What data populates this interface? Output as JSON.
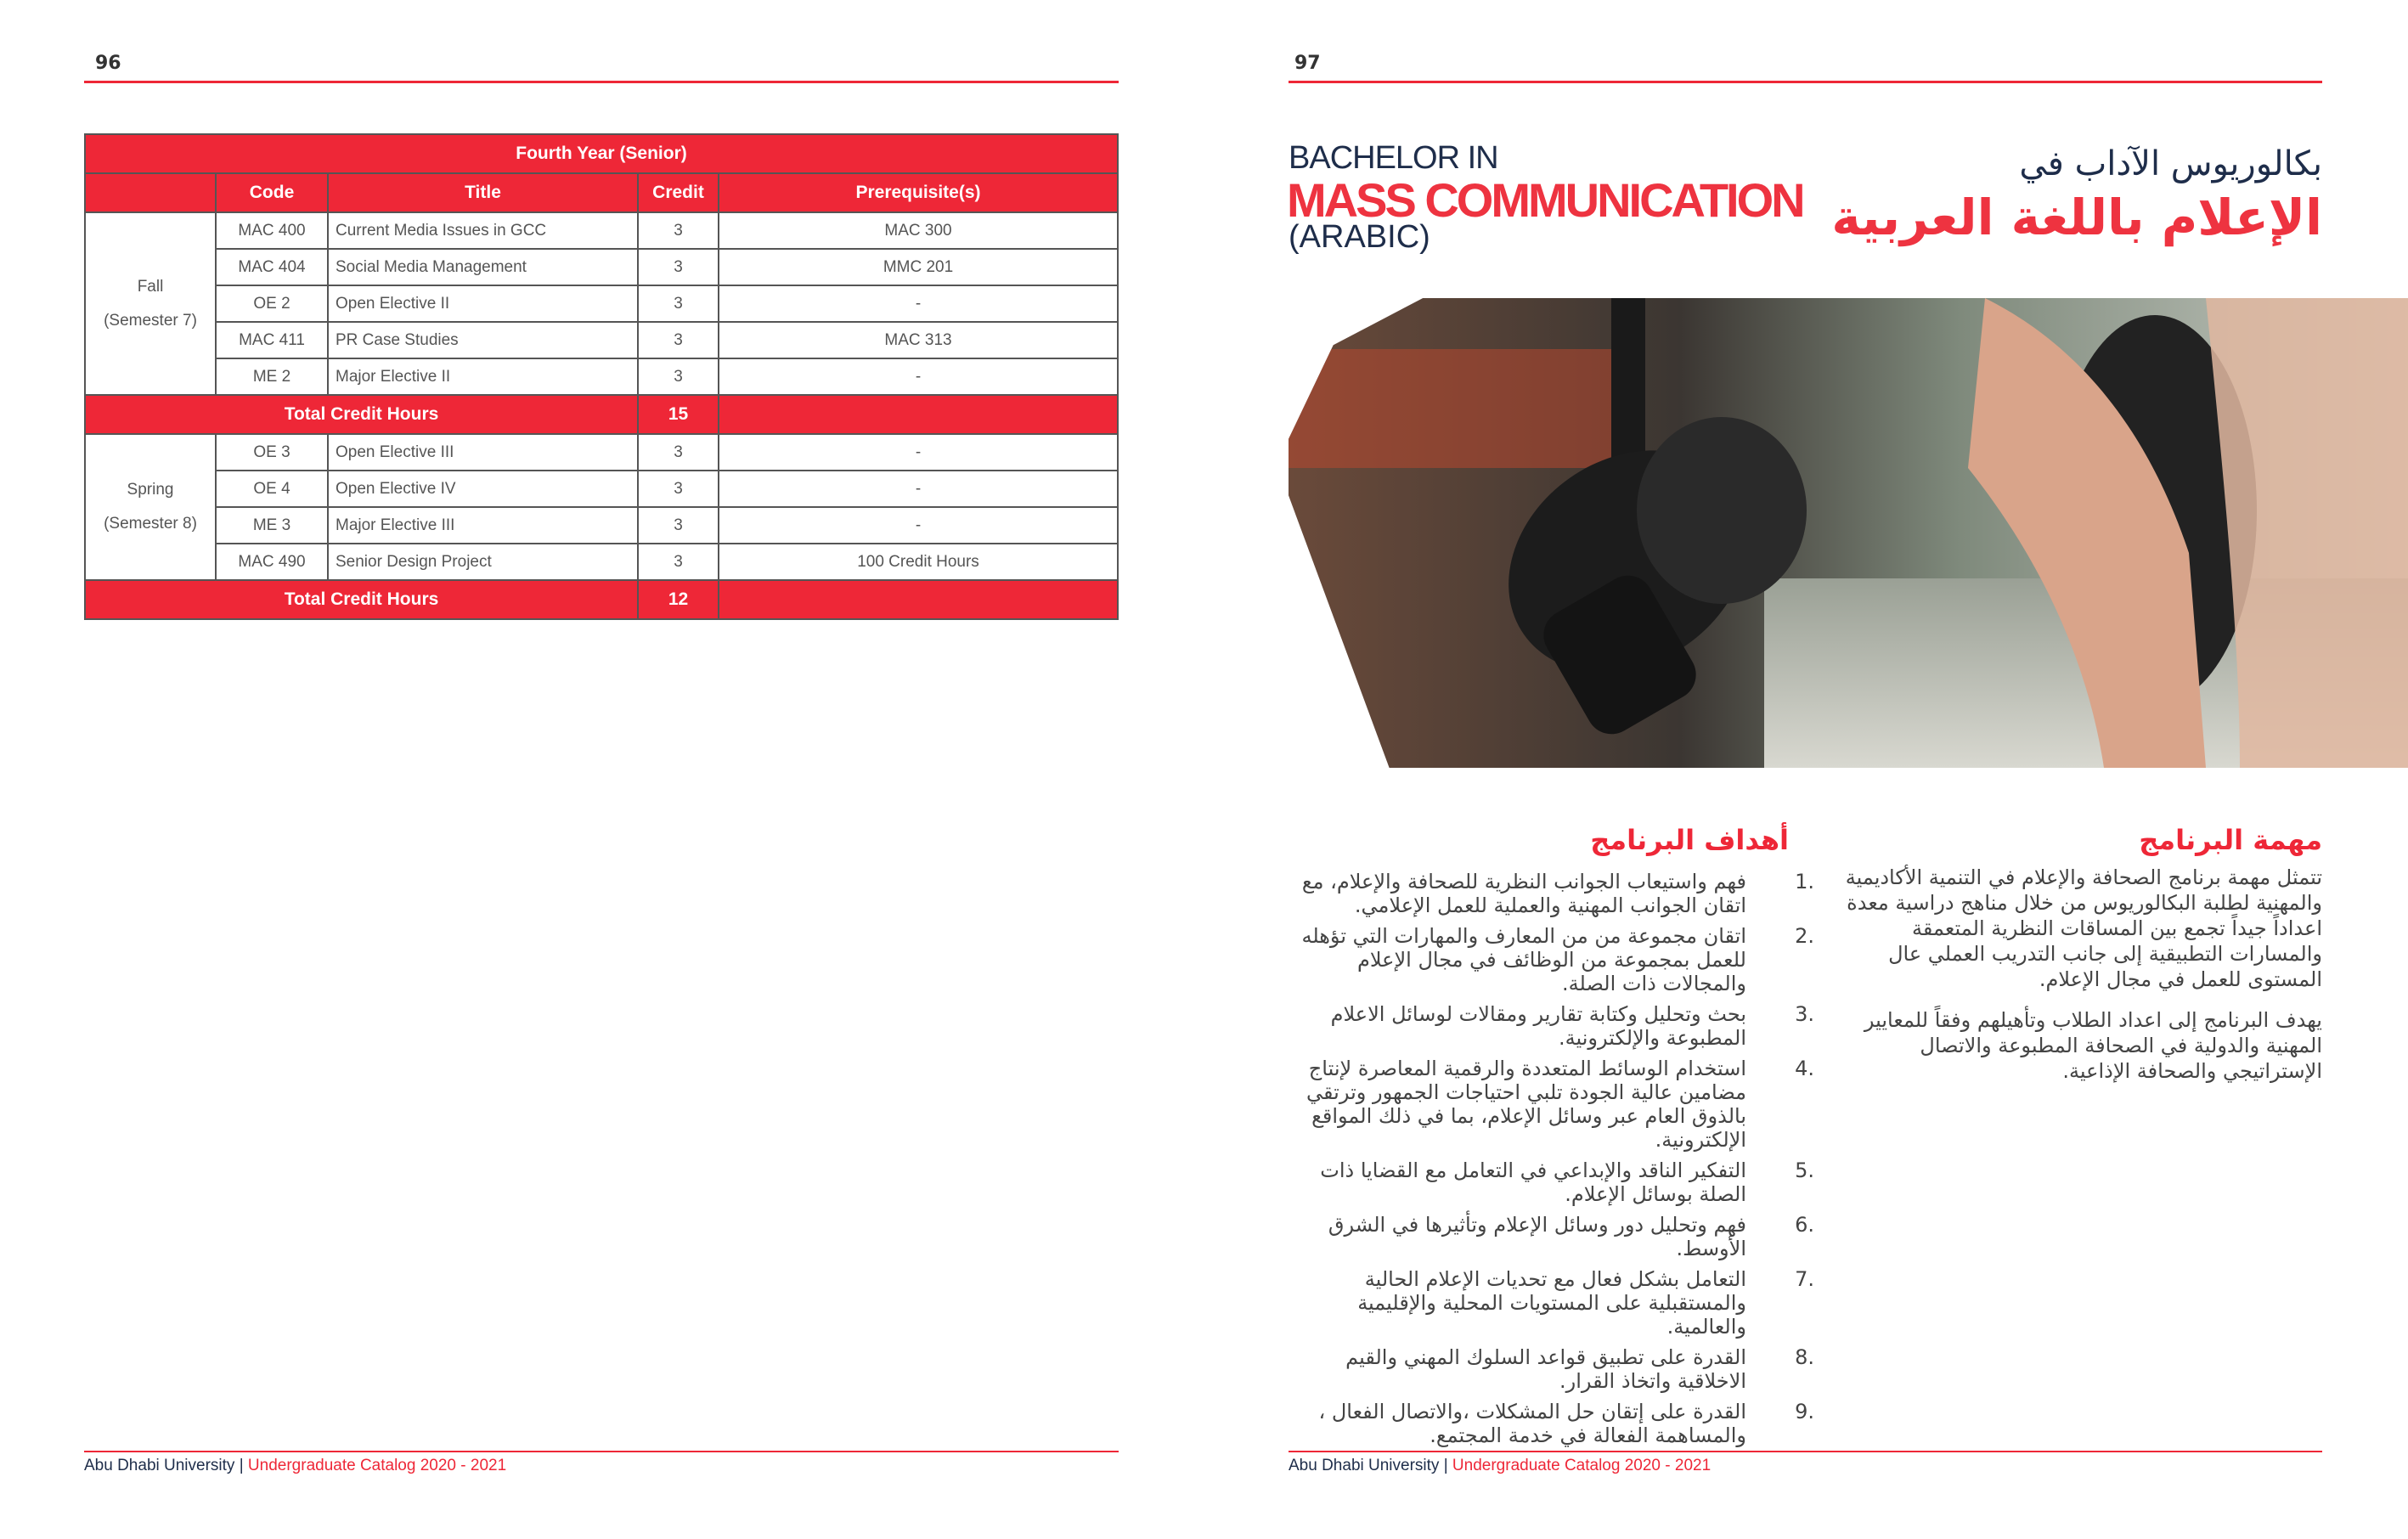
{
  "left_page": {
    "page_number": "96",
    "table": {
      "title": "Fourth Year (Senior)",
      "headers": [
        "Code",
        "Title",
        "Credit",
        "Prerequisite(s)"
      ],
      "semesters": [
        {
          "name": "Fall",
          "sub": "(Semester 7)",
          "rows": [
            {
              "code": "MAC 400",
              "title": "Current Media Issues in GCC",
              "credit": "3",
              "prereq": "MAC 300"
            },
            {
              "code": "MAC 404",
              "title": "Social Media Management",
              "credit": "3",
              "prereq": "MMC 201"
            },
            {
              "code": "OE 2",
              "title": "Open Elective II",
              "credit": "3",
              "prereq": "-"
            },
            {
              "code": "MAC 411",
              "title": "PR Case Studies",
              "credit": "3",
              "prereq": "MAC 313"
            },
            {
              "code": "ME 2",
              "title": "Major Elective II",
              "credit": "3",
              "prereq": "-"
            }
          ],
          "total_label": "Total Credit Hours",
          "total": "15"
        },
        {
          "name": "Spring",
          "sub": "(Semester 8)",
          "rows": [
            {
              "code": "OE 3",
              "title": "Open Elective III",
              "credit": "3",
              "prereq": "-"
            },
            {
              "code": "OE 4",
              "title": "Open Elective IV",
              "credit": "3",
              "prereq": "-"
            },
            {
              "code": "ME 3",
              "title": "Major Elective III",
              "credit": "3",
              "prereq": "-"
            },
            {
              "code": "MAC 490",
              "title": "Senior Design Project",
              "credit": "3",
              "prereq": "100 Credit Hours"
            }
          ],
          "total_label": "Total Credit Hours",
          "total": "12"
        }
      ]
    },
    "footer": {
      "university": "Abu Dhabi University",
      "separator": "|",
      "catalog": "Undergraduate Catalog 2020 - 2021"
    }
  },
  "right_page": {
    "page_number": "97",
    "title_en": {
      "line1": "BACHELOR IN",
      "line2": "MASS COMMUNICATION",
      "line3": "(ARABIC)"
    },
    "title_ar": {
      "line1": "بكالوريوس الآداب في",
      "line2": "الإعلام باللغة العربية"
    },
    "mission": {
      "heading": "مهمة البرنامج",
      "paragraphs": [
        "تتمثل مهمة برنامج الصحافة والإعلام في التنمية الأكاديمية والمهنية لطلبة البكالوريوس من خلال مناهج دراسية معدة اعداداً جيداً تجمع بين المساقات النظرية المتعمقة والمسارات التطبيقية إلى جانب التدريب العملي عال المستوى للعمل في مجال الإعلام.",
        "يهدف البرنامج إلى اعداد الطلاب وتأهيلهم وفقاً للمعايير المهنية والدولية في الصحافة المطبوعة والاتصال الإستراتيجي والصحافة الإذاعية."
      ]
    },
    "objectives": {
      "heading": "أهداف البرنامج",
      "items": [
        {
          "num": "1.",
          "text": "فهم واستيعاب الجوانب النظرية للصحافة والإعلام، مع اتقان الجوانب المهنية والعملية للعمل الإعلامي."
        },
        {
          "num": "2.",
          "text": "اتقان مجموعة من من المعارف والمهارات التي تؤهله للعمل بمجموعة من الوظائف في مجال الإعلام والمجالات ذات الصلة."
        },
        {
          "num": "3.",
          "text": "بحث وتحليل وكتابة تقارير ومقالات لوسائل الاعلام المطبوعة والإلكترونية."
        },
        {
          "num": "4.",
          "text": "استخدام الوسائط المتعددة والرقمية المعاصرة لإنتاج مضامين عالية الجودة تلبي احتياجات الجمهور وترتقي بالذوق العام عبر وسائل الإعلام، بما في ذلك المواقع الإلكترونية."
        },
        {
          "num": "5.",
          "text": "التفكير الناقد والإبداعي في التعامل مع القضايا ذات الصلة بوسائل الإعلام."
        },
        {
          "num": "6.",
          "text": "فهم وتحليل دور وسائل الإعلام وتأثيرها في الشرق الأوسط."
        },
        {
          "num": "7.",
          "text": "التعامل بشكل فعال مع تحديات الإعلام الحالية والمستقبلية على المستويات المحلية والإقليمية والعالمية."
        },
        {
          "num": "8.",
          "text": "القدرة على تطبيق قواعد السلوك المهني والقيم الاخلاقية واتخاذ القرار."
        },
        {
          "num": "9.",
          "text": "القدرة على إتقان حل المشكلات ،والاتصال الفعال ، والمساهمة الفعالة في خدمة المجتمع."
        }
      ]
    },
    "footer": {
      "university": "Abu Dhabi University",
      "separator": "|",
      "catalog": "Undergraduate Catalog 2020 - 2021"
    }
  },
  "colors": {
    "accent": "#ee2737",
    "navy": "#1e2d4a"
  }
}
